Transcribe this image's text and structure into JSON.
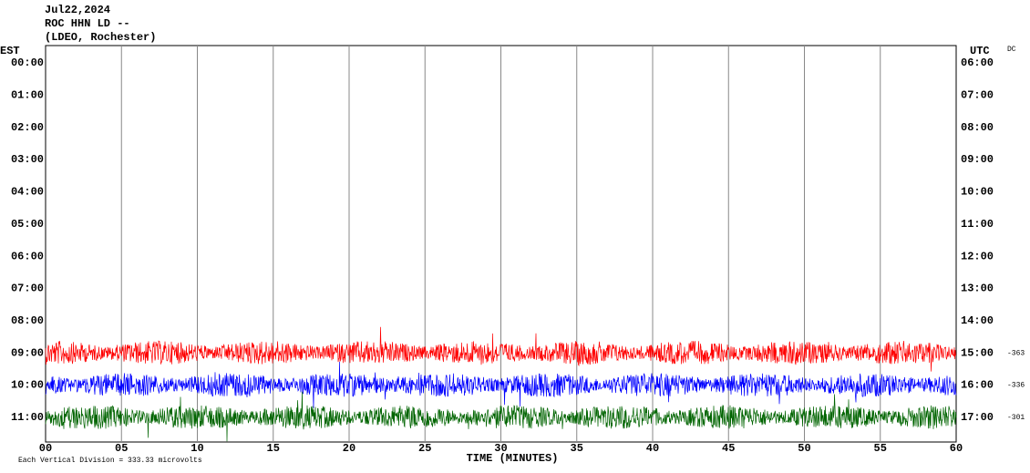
{
  "header": {
    "date": "Jul22,2024",
    "station": "ROC HHN LD --",
    "network": "(LDEO, Rochester)"
  },
  "left_axis": {
    "title": "EST",
    "labels": [
      "00:00",
      "01:00",
      "02:00",
      "03:00",
      "04:00",
      "05:00",
      "06:00",
      "07:00",
      "08:00",
      "09:00",
      "10:00",
      "11:00"
    ]
  },
  "right_axis": {
    "title": "UTC",
    "mode": "DC",
    "labels": [
      "06:00",
      "07:00",
      "08:00",
      "09:00",
      "10:00",
      "11:00",
      "12:00",
      "13:00",
      "14:00",
      "15:00",
      "16:00",
      "17:00"
    ]
  },
  "x_axis": {
    "title": "TIME (MINUTES)",
    "labels": [
      "00",
      "05",
      "10",
      "15",
      "20",
      "25",
      "30",
      "35",
      "40",
      "45",
      "50",
      "55",
      "60"
    ]
  },
  "trace_offsets": [
    "-363",
    "-336",
    "-301"
  ],
  "footer": "Each Vertical Division =  333.33 microvolts"
}
